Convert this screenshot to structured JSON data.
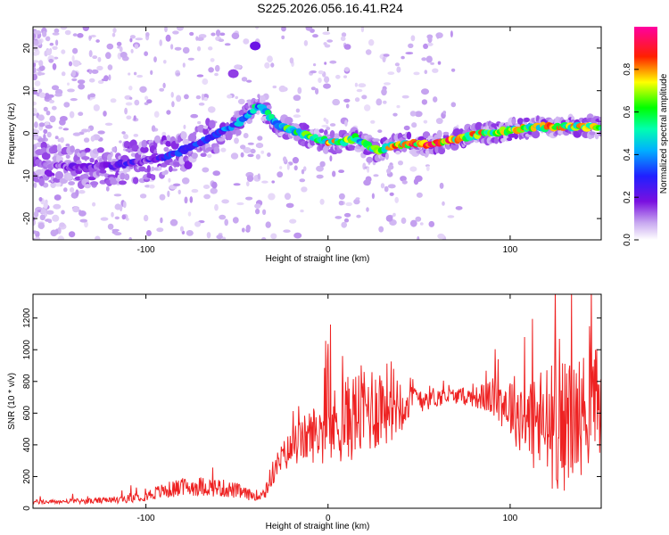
{
  "title": "S225.2026.056.16.41.R24",
  "chart_data": [
    {
      "type": "heatmap",
      "title": "S225.2026.056.16.41.R24",
      "xlabel": "Height of straight line (km)",
      "ylabel": "Frequency (Hz)",
      "xlim": [
        -162,
        150
      ],
      "ylim": [
        -25,
        25
      ],
      "x_ticks": [
        -100,
        0,
        100
      ],
      "x_tick_labels": [
        "-100",
        "0",
        "100"
      ],
      "y_ticks": [
        -20,
        -10,
        0,
        10,
        20
      ],
      "y_tick_labels": [
        "-20",
        "-10",
        "0",
        "10",
        "20"
      ],
      "colorbar": {
        "label": "Normalized spectral amplitude",
        "range": [
          0,
          1
        ],
        "ticks": [
          0.0,
          0.2,
          0.4,
          0.6,
          0.8
        ],
        "tick_labels": [
          "0.0",
          "0.2",
          "0.4",
          "0.6",
          "0.8"
        ]
      },
      "ridge": {
        "x": [
          -162,
          -150,
          -140,
          -130,
          -120,
          -110,
          -100,
          -90,
          -80,
          -70,
          -60,
          -50,
          -45,
          -40,
          -36,
          -32,
          -28,
          -22,
          -15,
          -8,
          0,
          8,
          15,
          22,
          28,
          35,
          45,
          55,
          65,
          75,
          85,
          95,
          105,
          115,
          125,
          135,
          150
        ],
        "freq": [
          -7,
          -7.5,
          -8,
          -8,
          -7.5,
          -7,
          -6.5,
          -5.5,
          -4,
          -2,
          0,
          2,
          4,
          6,
          6,
          4,
          2,
          1,
          0,
          -1,
          -2,
          -2,
          -1,
          -3,
          -4,
          -3,
          -2.5,
          -2.5,
          -2,
          -1,
          0,
          0.5,
          1,
          1.5,
          1.5,
          1.5,
          1.5
        ],
        "amplitude": [
          0.15,
          0.15,
          0.2,
          0.2,
          0.2,
          0.25,
          0.2,
          0.3,
          0.35,
          0.35,
          0.35,
          0.4,
          0.45,
          0.5,
          0.5,
          0.55,
          0.6,
          0.6,
          0.6,
          0.7,
          0.75,
          0.7,
          0.6,
          0.65,
          0.65,
          0.75,
          0.85,
          0.95,
          0.9,
          0.8,
          0.8,
          0.75,
          0.7,
          0.75,
          0.8,
          0.8,
          0.75
        ]
      },
      "blobs": [
        {
          "x": -40,
          "freq": 20.5,
          "amplitude": 0.2
        },
        {
          "x": -52,
          "freq": 14,
          "amplitude": 0.15
        }
      ]
    },
    {
      "type": "line",
      "xlabel": "Height of straight line (km)",
      "ylabel": "SNR (10 * v/v)",
      "xlim": [
        -162,
        150
      ],
      "ylim": [
        0,
        1350
      ],
      "x_ticks": [
        -100,
        0,
        100
      ],
      "x_tick_labels": [
        "-100",
        "0",
        "100"
      ],
      "y_ticks": [
        0,
        200,
        400,
        600,
        800,
        1000,
        1200
      ],
      "y_tick_labels": [
        "0",
        "200",
        "400",
        "600",
        "800",
        "1000",
        "1200"
      ],
      "series": [
        {
          "name": "SNR",
          "color": "#ee2222",
          "x": [
            -162,
            -150,
            -140,
            -130,
            -120,
            -110,
            -100,
            -90,
            -80,
            -70,
            -60,
            -50,
            -45,
            -40,
            -35,
            -30,
            -25,
            -20,
            -15,
            -10,
            -5,
            0,
            10,
            20,
            30,
            40,
            50,
            60,
            70,
            80,
            90,
            100,
            110,
            120,
            130,
            140,
            150
          ],
          "trend": [
            40,
            40,
            45,
            45,
            50,
            60,
            80,
            110,
            130,
            140,
            130,
            110,
            90,
            80,
            100,
            230,
            320,
            380,
            420,
            460,
            480,
            500,
            560,
            620,
            660,
            680,
            700,
            700,
            710,
            700,
            700,
            650,
            560,
            520,
            520,
            600,
            700
          ],
          "spread": [
            15,
            15,
            15,
            18,
            20,
            25,
            35,
            50,
            60,
            60,
            60,
            50,
            40,
            30,
            60,
            80,
            100,
            120,
            140,
            170,
            200,
            230,
            270,
            300,
            280,
            200,
            100,
            60,
            50,
            60,
            120,
            200,
            300,
            400,
            420,
            380,
            350
          ],
          "peak_values": [
            1180,
            1340,
            1350,
            1240
          ]
        }
      ]
    }
  ]
}
